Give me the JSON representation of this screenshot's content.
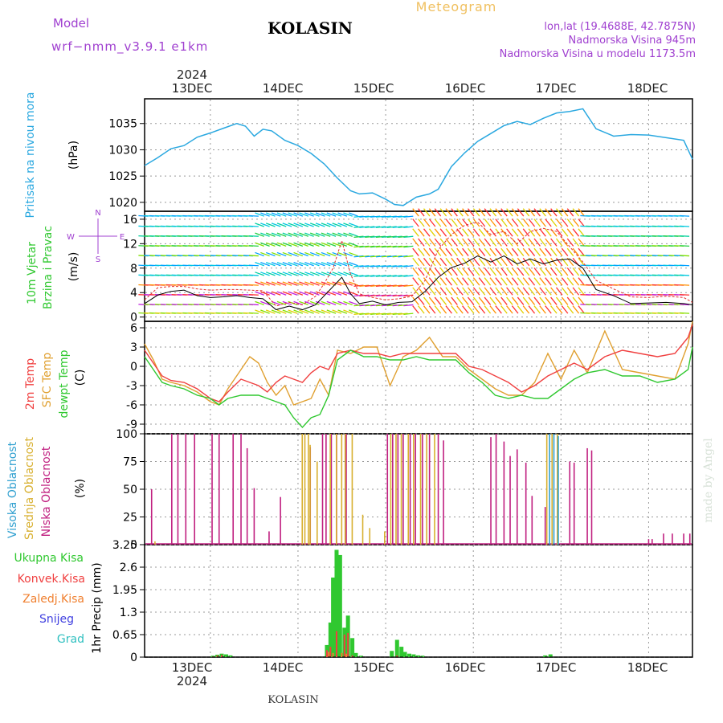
{
  "header": {
    "model_label": "Model",
    "model_name": "wrf−nmm_v3.9.1  e1km",
    "station": "KOLASIN",
    "meteogram": "Meteogram",
    "lonlat": "lon,lat (19.4688E, 42.7875N)",
    "elevation": "Nadmorska Visina 945m",
    "model_elevation": "Nadmorska Visina u modelu 1173.5m",
    "footer_station": "KOLASIN",
    "credit": "made by Angel"
  },
  "colors": {
    "pressure": "#2aa8e0",
    "temp2m": "#f04040",
    "sfc_temp": "#e0a030",
    "dewpt": "#30c830",
    "low_cloud": "#c02080",
    "mid_cloud": "#d8b030",
    "high_cloud": "#30a0d0",
    "precip_total": "#30c830",
    "precip_conv": "#f04040",
    "precip_frz": "#f08030",
    "snow": "#4040e0",
    "grad": "#30c0c0",
    "purple": "#a040d0",
    "orange": "#f0c060"
  },
  "chart_data": [
    {
      "type": "line",
      "panel": "pressure",
      "year_label": "2024",
      "x_tick_labels": [
        "13DEC",
        "14DEC",
        "15DEC",
        "16DEC",
        "17DEC",
        "18DEC"
      ],
      "ylabel_name": "Pritisak na nivou mora",
      "ylabel_unit": "(hPa)",
      "yticks": [
        1020,
        1025,
        1030,
        1035
      ],
      "ylim": [
        1018.3,
        1039.7
      ],
      "x": [
        12.25,
        12.4,
        12.55,
        12.7,
        12.85,
        13.0,
        13.15,
        13.3,
        13.4,
        13.5,
        13.6,
        13.7,
        13.85,
        14.0,
        14.15,
        14.3,
        14.45,
        14.6,
        14.7,
        14.85,
        15.0,
        15.1,
        15.2,
        15.35,
        15.5,
        15.6,
        15.75,
        15.9,
        16.05,
        16.2,
        16.35,
        16.5,
        16.65,
        16.8,
        16.95,
        17.1,
        17.25,
        17.4,
        17.6,
        17.8,
        18.0,
        18.2,
        18.4,
        18.5
      ],
      "values": [
        1027,
        1028.5,
        1030.2,
        1030.8,
        1032.4,
        1033.2,
        1034.1,
        1035,
        1034.5,
        1032.6,
        1033.9,
        1033.6,
        1031.8,
        1030.8,
        1029.3,
        1027.3,
        1024.6,
        1022.2,
        1021.6,
        1021.8,
        1020.6,
        1019.6,
        1019.4,
        1021.0,
        1021.6,
        1022.5,
        1026.8,
        1029.4,
        1031.6,
        1033.1,
        1034.6,
        1035.4,
        1034.8,
        1036.0,
        1037.0,
        1037.3,
        1037.8,
        1034.0,
        1032.6,
        1032.9,
        1032.8,
        1032.3,
        1031.8,
        1028.2
      ]
    },
    {
      "type": "line",
      "panel": "wind",
      "ylabel_name": "10m Vjetar",
      "ylabel_name2": "Brzina i Pravac",
      "ylabel_unit": "(m/s)",
      "compass": {
        "north": "N",
        "east": "E",
        "south": "S",
        "west": "W"
      },
      "yticks": [
        0,
        4,
        8,
        12,
        16
      ],
      "ylim": [
        -0.7,
        17.3
      ],
      "x": [
        12.25,
        12.4,
        12.55,
        12.7,
        12.85,
        13.0,
        13.15,
        13.3,
        13.45,
        13.6,
        13.75,
        13.9,
        14.05,
        14.2,
        14.3,
        14.4,
        14.5,
        14.6,
        14.7,
        14.85,
        15.0,
        15.15,
        15.3,
        15.45,
        15.6,
        15.75,
        15.9,
        16.05,
        16.2,
        16.35,
        16.5,
        16.65,
        16.8,
        16.95,
        17.1,
        17.25,
        17.4,
        17.6,
        17.8,
        18.0,
        18.2,
        18.4,
        18.5
      ],
      "values": [
        2.2,
        3.6,
        4.2,
        4.4,
        3.5,
        3.2,
        3.3,
        3.5,
        3.2,
        3.0,
        1.2,
        1.8,
        1.2,
        2.0,
        3.5,
        5.0,
        6.5,
        3.8,
        2.2,
        2.6,
        2.0,
        2.4,
        2.5,
        4.2,
        6.5,
        8.1,
        8.8,
        10.0,
        9.0,
        10.0,
        8.7,
        9.5,
        8.7,
        9.3,
        9.5,
        8.0,
        4.5,
        3.5,
        2.2,
        2.3,
        2.4,
        2.2,
        2.0
      ],
      "gust": [
        2.8,
        4.8,
        5.0,
        5.0,
        4.6,
        4.4,
        4.5,
        4.5,
        4.4,
        4.3,
        1.8,
        2.4,
        2.0,
        3.4,
        5.5,
        8.0,
        12.5,
        7.0,
        3.8,
        3.2,
        2.8,
        3.0,
        3.4,
        6.0,
        11.0,
        13.5,
        15.0,
        15.5,
        13.5,
        14.0,
        12.0,
        14.0,
        14.5,
        14.0,
        11.5,
        9.0,
        6.0,
        4.6,
        3.3,
        3.2,
        3.4,
        3.2,
        2.4
      ]
    },
    {
      "type": "line",
      "panel": "temperature",
      "ylabel_names": [
        "2m Temp",
        "SFC Temp",
        "dewpt Temp"
      ],
      "ylabel_unit": "(C)",
      "yticks": [
        -9,
        -6,
        -3,
        0,
        3,
        6
      ],
      "ylim": [
        -10.5,
        7
      ],
      "x": [
        12.25,
        12.35,
        12.45,
        12.55,
        12.7,
        12.85,
        13.0,
        13.1,
        13.2,
        13.35,
        13.45,
        13.55,
        13.65,
        13.75,
        13.85,
        13.95,
        14.05,
        14.15,
        14.25,
        14.35,
        14.45,
        14.6,
        14.75,
        14.9,
        15.05,
        15.2,
        15.35,
        15.5,
        15.65,
        15.8,
        15.95,
        16.1,
        16.25,
        16.4,
        16.55,
        16.7,
        16.85,
        17.0,
        17.15,
        17.3,
        17.5,
        17.7,
        17.9,
        18.1,
        18.3,
        18.45,
        18.5
      ],
      "series": [
        {
          "name": "2m Temp",
          "values": [
            2.5,
            0.5,
            -1.5,
            -2.2,
            -2.5,
            -3.5,
            -5.0,
            -5.5,
            -4.0,
            -2.0,
            -2.5,
            -3.0,
            -4.0,
            -2.5,
            -1.5,
            -2.0,
            -2.5,
            -1.0,
            0.0,
            -0.5,
            2.0,
            2.5,
            2.0,
            2.0,
            1.5,
            2.0,
            2.0,
            2.0,
            2.0,
            2.0,
            0.0,
            -0.5,
            -1.5,
            -2.5,
            -4.0,
            -3.0,
            -1.5,
            -0.5,
            0.5,
            -0.5,
            1.5,
            2.5,
            2.0,
            1.5,
            2.0,
            4.5,
            6.5
          ]
        },
        {
          "name": "SFC Temp",
          "values": [
            3.5,
            1.0,
            -2.0,
            -2.5,
            -3.0,
            -4.0,
            -5.5,
            -6.0,
            -3.5,
            -0.5,
            1.5,
            0.5,
            -2.5,
            -4.5,
            -3.0,
            -6.0,
            -5.5,
            -5.0,
            -2.0,
            -4.5,
            2.5,
            2.0,
            3.0,
            3.0,
            -3.0,
            1.5,
            2.5,
            4.5,
            1.5,
            1.5,
            -0.5,
            -2.0,
            -3.5,
            -4.5,
            -4.5,
            -2.5,
            2.0,
            -2.0,
            2.5,
            -1.0,
            5.5,
            -0.5,
            -1.0,
            -1.5,
            -2.0,
            3.5,
            7.0
          ]
        },
        {
          "name": "dewpt Temp",
          "values": [
            1.5,
            -0.5,
            -2.5,
            -3.0,
            -3.5,
            -4.5,
            -5.0,
            -6.0,
            -5.0,
            -4.5,
            -4.5,
            -4.5,
            -5.0,
            -5.5,
            -6.0,
            -8.0,
            -9.5,
            -8.0,
            -7.5,
            -4.5,
            1.0,
            2.5,
            1.5,
            1.5,
            1.0,
            1.0,
            1.5,
            1.0,
            1.0,
            1.0,
            -1.0,
            -2.5,
            -4.5,
            -5.0,
            -4.5,
            -5.0,
            -5.0,
            -3.5,
            -2.0,
            -1.0,
            -0.5,
            -1.5,
            -1.5,
            -2.5,
            -2.0,
            -0.5,
            3.0
          ]
        }
      ]
    },
    {
      "type": "bar",
      "panel": "cloud",
      "ylabel_names": [
        "Visoka Oblacnost",
        "Srednja Oblacnost",
        "Niska Oblacnost"
      ],
      "ylabel_unit": "(%)",
      "yticks": [
        0,
        25,
        50,
        75,
        100
      ],
      "ylim": [
        0,
        100
      ],
      "low": [
        [
          12.33,
          50
        ],
        [
          12.56,
          100
        ],
        [
          12.63,
          100
        ],
        [
          12.72,
          100
        ],
        [
          12.82,
          100
        ],
        [
          13.02,
          100
        ],
        [
          13.1,
          100
        ],
        [
          13.26,
          100
        ],
        [
          13.35,
          100
        ],
        [
          13.42,
          87
        ],
        [
          13.5,
          51
        ],
        [
          13.67,
          12
        ],
        [
          13.8,
          43
        ],
        [
          14.14,
          88
        ],
        [
          14.28,
          100
        ],
        [
          14.32,
          100
        ],
        [
          14.38,
          100
        ],
        [
          14.44,
          100
        ],
        [
          14.55,
          100
        ],
        [
          15.02,
          100
        ],
        [
          15.08,
          100
        ],
        [
          15.14,
          100
        ],
        [
          15.2,
          100
        ],
        [
          15.28,
          100
        ],
        [
          15.34,
          100
        ],
        [
          15.42,
          100
        ],
        [
          15.5,
          100
        ],
        [
          15.6,
          100
        ],
        [
          15.66,
          94
        ],
        [
          16.2,
          97
        ],
        [
          16.26,
          100
        ],
        [
          16.35,
          93
        ],
        [
          16.42,
          80
        ],
        [
          16.5,
          86
        ],
        [
          16.6,
          74
        ],
        [
          16.67,
          44
        ],
        [
          16.82,
          34
        ],
        [
          17.1,
          75
        ],
        [
          17.15,
          74
        ],
        [
          17.3,
          87
        ],
        [
          17.35,
          85
        ],
        [
          18.0,
          5
        ],
        [
          18.04,
          5
        ],
        [
          18.17,
          10
        ],
        [
          18.27,
          10
        ],
        [
          18.4,
          10
        ],
        [
          18.47,
          10
        ]
      ],
      "mid": [
        [
          12.35,
          3
        ],
        [
          14.03,
          100
        ],
        [
          14.06,
          100
        ],
        [
          14.1,
          100
        ],
        [
          14.12,
          90
        ],
        [
          14.2,
          75
        ],
        [
          14.35,
          100
        ],
        [
          14.42,
          100
        ],
        [
          14.48,
          100
        ],
        [
          14.52,
          100
        ],
        [
          14.6,
          100
        ],
        [
          14.72,
          27
        ],
        [
          14.8,
          15
        ],
        [
          14.97,
          12
        ],
        [
          15.04,
          100
        ],
        [
          15.1,
          100
        ],
        [
          15.16,
          100
        ],
        [
          15.24,
          100
        ],
        [
          15.3,
          100
        ],
        [
          15.38,
          100
        ],
        [
          15.45,
          100
        ],
        [
          15.54,
          100
        ],
        [
          16.82,
          100
        ],
        [
          16.88,
          100
        ],
        [
          16.94,
          100
        ]
      ],
      "high": [
        [
          16.86,
          100
        ],
        [
          16.91,
          100
        ],
        [
          16.96,
          98
        ]
      ]
    },
    {
      "type": "bar",
      "panel": "precip",
      "ylabel_unit": "1hr Precip (mm)",
      "legend": [
        "Ukupna Kisa",
        "Konvek.Kisa",
        "Zaledj.Kisa",
        "Snijeg",
        "Grad"
      ],
      "yticks": [
        0,
        0.65,
        1.3,
        1.95,
        2.6,
        3.25
      ],
      "ylim": [
        0,
        3.25
      ],
      "total": [
        [
          13.03,
          0.04
        ],
        [
          13.08,
          0.07
        ],
        [
          13.13,
          0.1
        ],
        [
          13.18,
          0.08
        ],
        [
          13.23,
          0.05
        ],
        [
          14.33,
          0.35
        ],
        [
          14.37,
          1.0
        ],
        [
          14.4,
          2.3
        ],
        [
          14.44,
          3.1
        ],
        [
          14.48,
          2.95
        ],
        [
          14.53,
          0.85
        ],
        [
          14.57,
          1.2
        ],
        [
          14.62,
          0.55
        ],
        [
          14.66,
          0.12
        ],
        [
          14.72,
          0.04
        ],
        [
          15.07,
          0.18
        ],
        [
          15.13,
          0.5
        ],
        [
          15.18,
          0.3
        ],
        [
          15.22,
          0.15
        ],
        [
          15.27,
          0.1
        ],
        [
          15.32,
          0.08
        ],
        [
          15.37,
          0.05
        ],
        [
          15.42,
          0.04
        ],
        [
          16.82,
          0.05
        ],
        [
          16.88,
          0.08
        ]
      ],
      "conv": [
        [
          13.03,
          0.02
        ],
        [
          13.08,
          0.05
        ],
        [
          13.13,
          0.06
        ],
        [
          14.33,
          0.2
        ],
        [
          14.37,
          0.3
        ],
        [
          14.44,
          0.75
        ],
        [
          14.53,
          0.65
        ],
        [
          14.57,
          0.7
        ],
        [
          14.62,
          0.05
        ],
        [
          15.13,
          0.05
        ]
      ],
      "frz": [
        [
          14.35,
          0.15
        ],
        [
          14.4,
          0.12
        ],
        [
          14.5,
          0.12
        ],
        [
          14.55,
          0.1
        ]
      ]
    }
  ]
}
